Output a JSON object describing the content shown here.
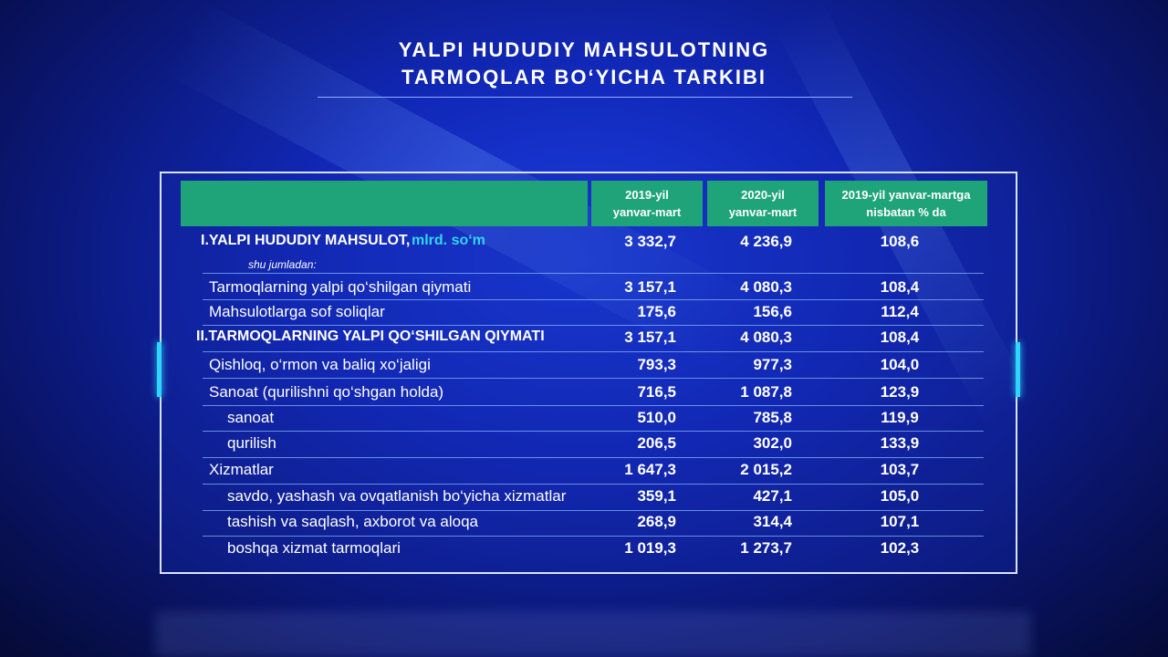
{
  "title": {
    "line1": "YALPI HUDUDIY MAHSULOTNING",
    "line2": "TARMOQLAR BO‘YICHA TARKIBI"
  },
  "colors": {
    "header_green": "#1fa479",
    "unit_cyan": "#33d6ee",
    "background": "#1128b8"
  },
  "chart_data": {
    "type": "table",
    "title": "YALPI HUDUDIY MAHSULOTNING TARMOQLAR BO‘YICHA TARKIBI",
    "columns": [
      "",
      "2019-yil yanvar-mart",
      "2020-yil yanvar-mart",
      "2019-yil yanvar-martga nisbatan % da"
    ],
    "header": {
      "c1a": "2019-yil",
      "c1b": "yanvar-mart",
      "c2a": "2020-yil",
      "c2b": "yanvar-mart",
      "c3a": "2019-yil yanvar-martga",
      "c3b": "nisbatan % da"
    },
    "first_row_unit": "mlrd. so‘m",
    "first_row_note": "shu jumladan:",
    "rows": [
      {
        "label": "I.YALPI HUDUDIY MAHSULOT,",
        "level": 0,
        "v2019": "3 332,7",
        "v2020": "4 236,9",
        "pct": "108,6"
      },
      {
        "label": "Tarmoqlarning yalpi qo‘shilgan qiymati",
        "level": 1,
        "v2019": "3 157,1",
        "v2020": "4 080,3",
        "pct": "108,4"
      },
      {
        "label": "Mahsulotlarga sof soliqlar",
        "level": 1,
        "v2019": "175,6",
        "v2020": "156,6",
        "pct": "112,4"
      },
      {
        "label": "II.TARMOQLARNING YALPI QO‘SHILGAN QIYMATI",
        "level": 0,
        "v2019": "3 157,1",
        "v2020": "4 080,3",
        "pct": "108,4"
      },
      {
        "label": "Qishloq, o‘rmon va baliq xo‘jaligi",
        "level": 1,
        "v2019": "793,3",
        "v2020": "977,3",
        "pct": "104,0"
      },
      {
        "label": "Sanoat (qurilishni qo‘shgan holda)",
        "level": 1,
        "v2019": "716,5",
        "v2020": "1 087,8",
        "pct": "123,9"
      },
      {
        "label": "sanoat",
        "level": 2,
        "v2019": "510,0",
        "v2020": "785,8",
        "pct": "119,9"
      },
      {
        "label": "qurilish",
        "level": 2,
        "v2019": "206,5",
        "v2020": "302,0",
        "pct": "133,9"
      },
      {
        "label": "Xizmatlar",
        "level": 1,
        "v2019": "1 647,3",
        "v2020": "2 015,2",
        "pct": "103,7"
      },
      {
        "label": "savdo, yashash va ovqatlanish bo‘yicha xizmatlar",
        "level": 2,
        "v2019": "359,1",
        "v2020": "427,1",
        "pct": "105,0"
      },
      {
        "label": "tashish va saqlash, axborot va aloqa",
        "level": 2,
        "v2019": "268,9",
        "v2020": "314,4",
        "pct": "107,1"
      },
      {
        "label": "boshqa xizmat tarmoqlari",
        "level": 2,
        "v2019": "1 019,3",
        "v2020": "1 273,7",
        "pct": "102,3"
      }
    ]
  }
}
